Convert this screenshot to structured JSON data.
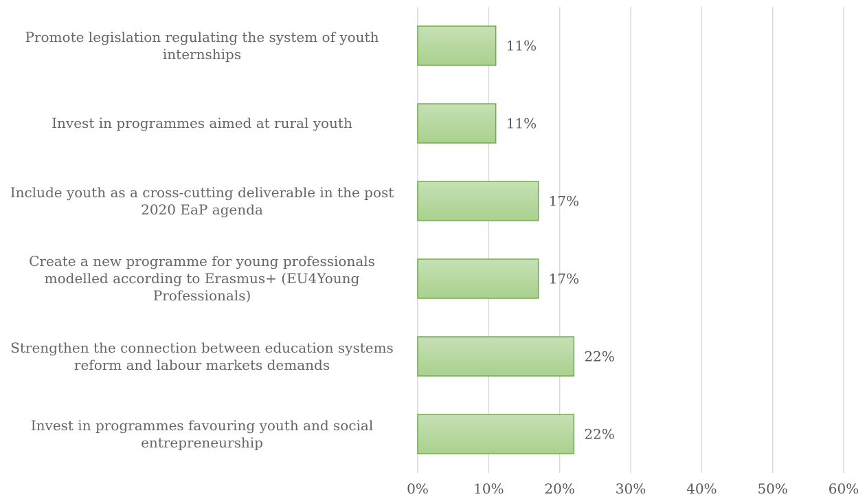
{
  "chart_data": {
    "type": "bar",
    "orientation": "horizontal",
    "categories": [
      "Promote legislation regulating the system of youth internships",
      "Invest in programmes aimed at rural youth",
      "Include youth as a cross-cutting deliverable in the post 2020 EaP agenda",
      "Create a new programme for young professionals modelled according to Erasmus+ (EU4Young Professionals)",
      "Strengthen the connection between education systems reform and labour markets demands",
      "Invest in programmes favouring youth and social entrepreneurship"
    ],
    "values": [
      11,
      11,
      17,
      17,
      22,
      22
    ],
    "data_labels": [
      "11%",
      "11%",
      "17%",
      "17%",
      "22%",
      "22%"
    ],
    "xlim": [
      0,
      60
    ],
    "ticks": [
      0,
      10,
      20,
      30,
      40,
      50,
      60
    ],
    "tick_labels": [
      "0%",
      "10%",
      "20%",
      "30%",
      "40%",
      "50%",
      "60%"
    ],
    "grid": true,
    "legend": "none",
    "colors": {
      "bar_fill_top": "#c6e0b4",
      "bar_fill_bottom": "#a9d18e",
      "bar_stroke": "#70ad47",
      "grid": "#d9d9d9"
    }
  }
}
